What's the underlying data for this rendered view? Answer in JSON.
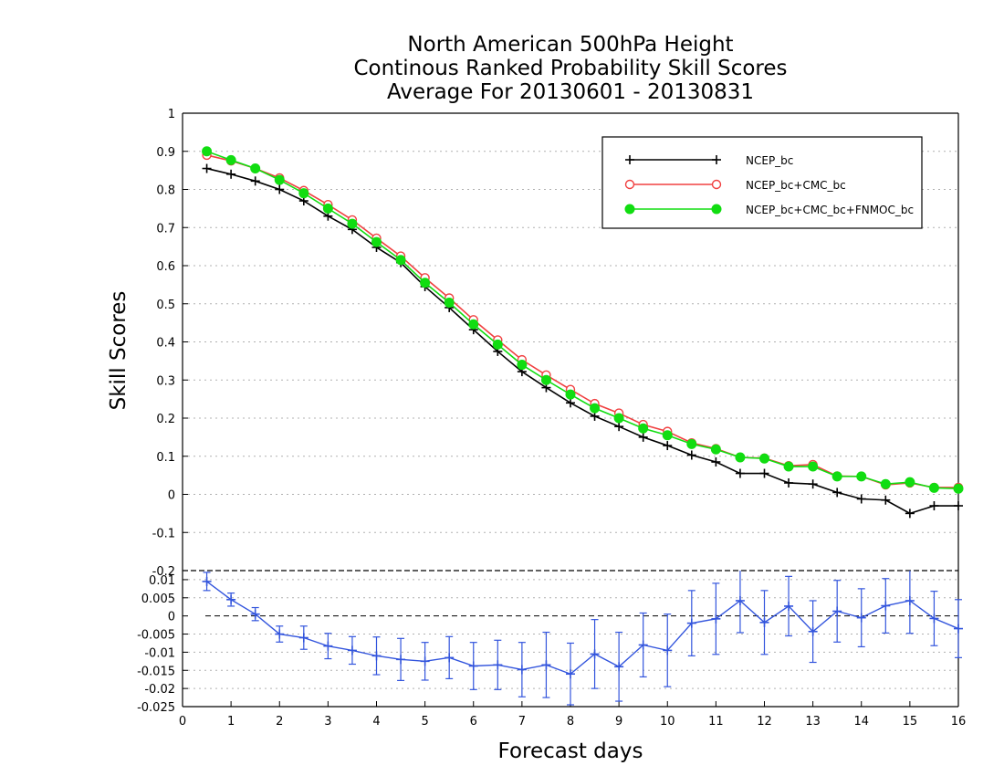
{
  "title": {
    "line1": "North American 500hPa Height",
    "line2": "Continous Ranked Probability Skill Scores",
    "line3": "Average For 20130601 - 20130831"
  },
  "chart_data": [
    {
      "type": "line",
      "ylabel": "Skill Scores",
      "xlim": [
        0,
        16
      ],
      "ylim": [
        -0.2,
        1
      ],
      "x_ticks": [
        "0",
        "1",
        "2",
        "3",
        "4",
        "5",
        "6",
        "7",
        "8",
        "9",
        "10",
        "11",
        "12",
        "13",
        "14",
        "15",
        "16"
      ],
      "y_ticks": [
        "-0.2",
        "-0.1",
        "0",
        "0.1",
        "0.2",
        "0.3",
        "0.4",
        "0.5",
        "0.6",
        "0.7",
        "0.8",
        "0.9",
        "1"
      ],
      "grid": "horizontal dotted",
      "legend_position": "top-right",
      "x": [
        0.5,
        1,
        1.5,
        2,
        2.5,
        3,
        3.5,
        4,
        4.5,
        5,
        5.5,
        6,
        6.5,
        7,
        7.5,
        8,
        8.5,
        9,
        9.5,
        10,
        10.5,
        11,
        11.5,
        12,
        12.5,
        13,
        13.5,
        14,
        14.5,
        15,
        15.5,
        16
      ],
      "series": [
        {
          "name": "NCEP_bc",
          "color": "#000000",
          "marker": "plus",
          "values": [
            0.855,
            0.84,
            0.822,
            0.8,
            0.77,
            0.73,
            0.695,
            0.648,
            0.608,
            0.545,
            0.49,
            0.432,
            0.375,
            0.322,
            0.28,
            0.24,
            0.205,
            0.178,
            0.15,
            0.128,
            0.103,
            0.085,
            0.055,
            0.055,
            0.03,
            0.027,
            0.005,
            -0.012,
            -0.015,
            -0.05,
            -0.03,
            -0.03
          ]
        },
        {
          "name": "NCEP_bc+CMC_bc",
          "color": "#f04040",
          "marker": "open-circle",
          "values": [
            0.89,
            0.875,
            0.855,
            0.83,
            0.797,
            0.76,
            0.72,
            0.672,
            0.625,
            0.568,
            0.515,
            0.458,
            0.405,
            0.353,
            0.313,
            0.275,
            0.238,
            0.213,
            0.183,
            0.165,
            0.135,
            0.12,
            0.097,
            0.095,
            0.075,
            0.078,
            0.048,
            0.047,
            0.025,
            0.03,
            0.018,
            0.018
          ]
        },
        {
          "name": "NCEP_bc+CMC_bc+FNMOC_bc",
          "color": "#11dd11",
          "marker": "filled-circle",
          "values": [
            0.9,
            0.877,
            0.855,
            0.825,
            0.79,
            0.75,
            0.71,
            0.662,
            0.615,
            0.555,
            0.503,
            0.446,
            0.393,
            0.34,
            0.3,
            0.262,
            0.226,
            0.2,
            0.173,
            0.155,
            0.132,
            0.118,
            0.097,
            0.094,
            0.073,
            0.073,
            0.047,
            0.047,
            0.027,
            0.032,
            0.017,
            0.015
          ]
        }
      ]
    },
    {
      "type": "line",
      "xlabel": "Forecast days",
      "xlim": [
        0,
        16
      ],
      "ylim": [
        -0.025,
        0.0125
      ],
      "y_ticks": [
        "-0.025",
        "-0.02",
        "-0.015",
        "-0.01",
        "-0.005",
        "0",
        "0.005",
        "0.01"
      ],
      "grid": "horizontal dotted",
      "reference_line": 0,
      "series": [
        {
          "color": "#3355dd",
          "marker": "plus",
          "x": [
            0.5,
            1,
            1.5,
            2,
            2.5,
            3,
            3.5,
            4,
            4.5,
            5,
            5.5,
            6,
            6.5,
            7,
            7.5,
            8,
            8.5,
            9,
            9.5,
            10,
            10.5,
            11,
            11.5,
            12,
            12.5,
            13,
            13.5,
            14,
            14.5,
            15,
            15.5,
            16
          ],
          "values": [
            0.0095,
            0.0045,
            0.0005,
            -0.005,
            -0.006,
            -0.0083,
            -0.0095,
            -0.011,
            -0.012,
            -0.0125,
            -0.0115,
            -0.0138,
            -0.0135,
            -0.0148,
            -0.0135,
            -0.016,
            -0.0105,
            -0.014,
            -0.008,
            -0.0095,
            -0.002,
            -0.0008,
            0.0042,
            -0.0018,
            0.0027,
            -0.0043,
            0.0013,
            -0.0005,
            0.0028,
            0.0042,
            -0.0007,
            -0.0035
          ],
          "error": [
            0.0025,
            0.0018,
            0.0018,
            0.0022,
            0.0032,
            0.0035,
            0.0038,
            0.0052,
            0.0058,
            0.0052,
            0.0058,
            0.0065,
            0.0068,
            0.0075,
            0.009,
            0.0085,
            0.0095,
            0.0095,
            0.0088,
            0.01,
            0.009,
            0.0098,
            0.0088,
            0.0088,
            0.0082,
            0.0085,
            0.0085,
            0.008,
            0.0075,
            0.009,
            0.0075,
            0.008
          ]
        }
      ]
    }
  ]
}
